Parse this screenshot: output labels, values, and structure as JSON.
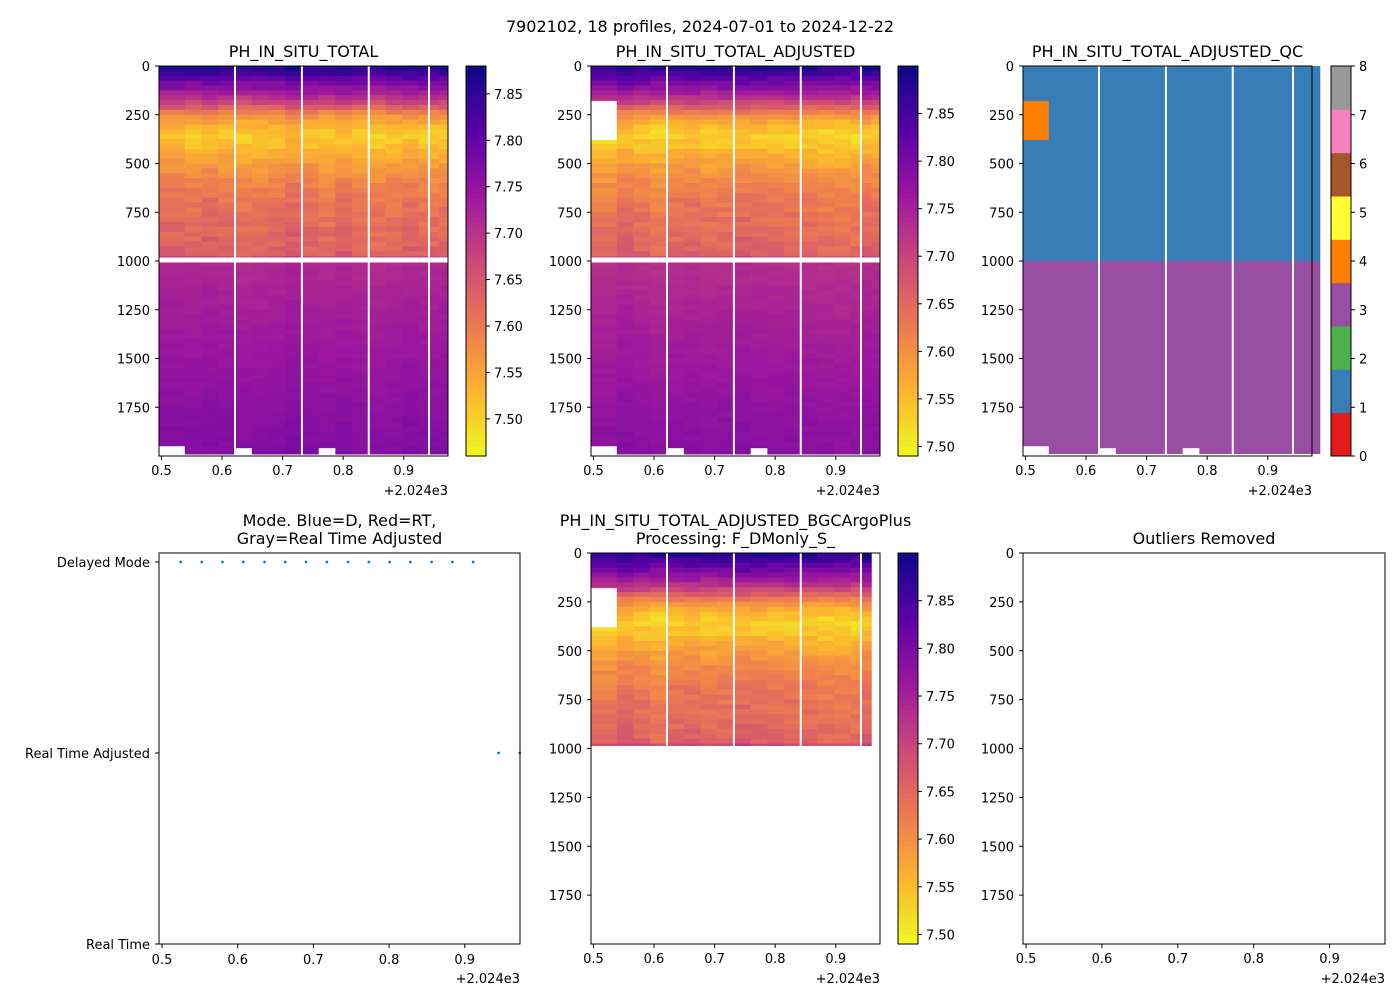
{
  "figure_title": "7902102, 18 profiles, 2024-07-01 to 2024-12-22",
  "x_axis": {
    "ticks": [
      0.5,
      0.6,
      0.7,
      0.8,
      0.9
    ],
    "tick_labels": [
      "0.5",
      "0.6",
      "0.7",
      "0.8",
      "0.9"
    ],
    "offset_label": "+2.024e3",
    "range": [
      0.496,
      0.973
    ]
  },
  "depth_axis": {
    "ticks": [
      0,
      250,
      500,
      750,
      1000,
      1250,
      1500,
      1750
    ],
    "tick_labels": [
      "0",
      "250",
      "500",
      "750",
      "1000",
      "1250",
      "1500",
      "1750"
    ],
    "range": [
      0,
      2000
    ]
  },
  "profile_times": [
    0.5246,
    0.5525,
    0.5799,
    0.6074,
    0.6355,
    0.6629,
    0.6903,
    0.7178,
    0.7459,
    0.7733,
    0.8008,
    0.8282,
    0.8562,
    0.8836,
    0.9111,
    0.9385,
    0.9447,
    0.9727
  ],
  "colors": {
    "qc": [
      "#e41a1c",
      "#377eb8",
      "#4daf4a",
      "#984ea3",
      "#ff7f00",
      "#ffff33",
      "#a65628",
      "#f781bf",
      "#999999"
    ],
    "mode_points": "#1f77b4",
    "plasma_stops": [
      "#f0f921",
      "#fdb42f",
      "#ed7953",
      "#cc4778",
      "#9c179e",
      "#5c01a6",
      "#0d0887"
    ]
  },
  "chart_data": [
    {
      "type": "heatmap",
      "title": "PH_IN_SITU_TOTAL",
      "colorbar": {
        "range": [
          7.46,
          7.88
        ],
        "ticks": [
          7.5,
          7.55,
          7.6,
          7.65,
          7.7,
          7.75,
          7.8,
          7.85
        ],
        "tick_labels": [
          "7.50",
          "7.55",
          "7.60",
          "7.65",
          "7.70",
          "7.75",
          "7.80",
          "7.85"
        ]
      },
      "depth_profile": {
        "depth": [
          0,
          50,
          100,
          150,
          200,
          250,
          300,
          350,
          400,
          500,
          600,
          700,
          800,
          900,
          975,
          1000,
          1250,
          1500,
          1750,
          2000
        ],
        "ph": [
          7.87,
          7.82,
          7.77,
          7.72,
          7.66,
          7.58,
          7.54,
          7.51,
          7.52,
          7.56,
          7.59,
          7.61,
          7.62,
          7.63,
          7.64,
          7.715,
          7.73,
          7.745,
          7.76,
          7.77
        ]
      }
    },
    {
      "type": "heatmap",
      "title": "PH_IN_SITU_TOTAL_ADJUSTED",
      "colorbar": {
        "range": [
          7.49,
          7.9
        ],
        "ticks": [
          7.5,
          7.55,
          7.6,
          7.65,
          7.7,
          7.75,
          7.8,
          7.85
        ],
        "tick_labels": [
          "7.50",
          "7.55",
          "7.60",
          "7.65",
          "7.70",
          "7.75",
          "7.80",
          "7.85"
        ]
      },
      "depth_profile": {
        "depth": [
          0,
          50,
          100,
          150,
          200,
          250,
          300,
          350,
          400,
          500,
          600,
          700,
          800,
          900,
          975,
          1000,
          1250,
          1500,
          1750,
          2000
        ],
        "ph": [
          7.89,
          7.84,
          7.79,
          7.74,
          7.68,
          7.6,
          7.56,
          7.53,
          7.54,
          7.58,
          7.61,
          7.63,
          7.64,
          7.65,
          7.66,
          7.73,
          7.745,
          7.76,
          7.775,
          7.785
        ]
      }
    },
    {
      "type": "heatmap",
      "title": "PH_IN_SITU_TOTAL_ADJUSTED_QC",
      "colorbar": {
        "range": [
          0,
          8
        ],
        "ticks": [
          0,
          1,
          2,
          3,
          4,
          5,
          6,
          7,
          8
        ],
        "tick_labels": [
          "0",
          "1",
          "2",
          "3",
          "4",
          "5",
          "6",
          "7",
          "8"
        ]
      },
      "qc_layers": [
        {
          "depth_range": [
            0,
            1000
          ],
          "flag": 1
        },
        {
          "depth_range": [
            1000,
            2000
          ],
          "flag": 3
        }
      ],
      "qc_flagged_box": {
        "flag": 4,
        "profile_index": 0,
        "depth_range": [
          180,
          380
        ]
      }
    },
    {
      "type": "scatter",
      "title": "Mode. Blue=D, Red=RT,\nGray=Real Time Adjusted",
      "y_categories": [
        "Real Time",
        "Real Time Adjusted",
        "Delayed Mode"
      ],
      "x": [
        0.5246,
        0.5525,
        0.5799,
        0.6074,
        0.6355,
        0.6629,
        0.6903,
        0.7178,
        0.7459,
        0.7733,
        0.8008,
        0.8282,
        0.8562,
        0.8836,
        0.9111,
        0.9447,
        0.9727
      ],
      "y": [
        "Delayed Mode",
        "Delayed Mode",
        "Delayed Mode",
        "Delayed Mode",
        "Delayed Mode",
        "Delayed Mode",
        "Delayed Mode",
        "Delayed Mode",
        "Delayed Mode",
        "Delayed Mode",
        "Delayed Mode",
        "Delayed Mode",
        "Delayed Mode",
        "Delayed Mode",
        "Delayed Mode",
        "Real Time Adjusted",
        "Real Time Adjusted"
      ]
    },
    {
      "type": "heatmap",
      "title": "PH_IN_SITU_TOTAL_ADJUSTED_BGCArgoPlus\nProcessing: F_DMonly_S_",
      "colorbar": {
        "range": [
          7.49,
          7.9
        ],
        "ticks": [
          7.5,
          7.55,
          7.6,
          7.65,
          7.7,
          7.75,
          7.8,
          7.85
        ],
        "tick_labels": [
          "7.50",
          "7.55",
          "7.60",
          "7.65",
          "7.70",
          "7.75",
          "7.80",
          "7.85"
        ]
      },
      "depth_max": 985,
      "last_time": 0.9447
    },
    {
      "type": "scatter",
      "title": "Outliers Removed",
      "x": [],
      "y": []
    }
  ]
}
